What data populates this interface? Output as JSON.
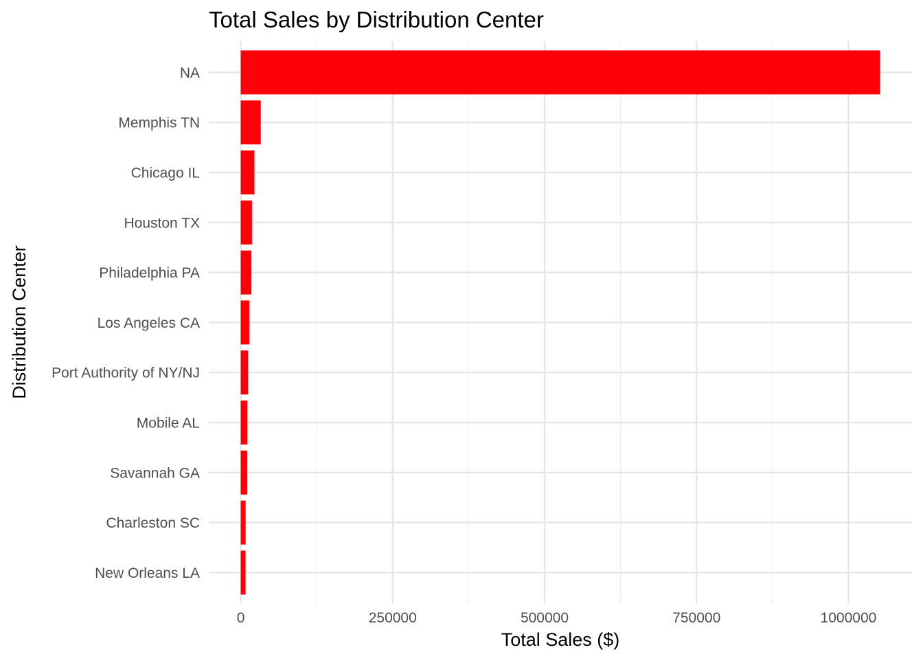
{
  "chart_data": {
    "type": "bar",
    "orientation": "horizontal",
    "title": "Total Sales by Distribution Center",
    "xlabel": "Total Sales ($)",
    "ylabel": "Distribution Center",
    "categories": [
      "NA",
      "Memphis TN",
      "Chicago IL",
      "Houston TX",
      "Philadelphia PA",
      "Los Angeles CA",
      "Port Authority of NY/NJ",
      "Mobile AL",
      "Savannah GA",
      "Charleston SC",
      "New Orleans LA"
    ],
    "values": [
      1052000,
      33000,
      22500,
      18500,
      17500,
      14000,
      11800,
      11000,
      10800,
      8000,
      7800
    ],
    "x_ticks": [
      0,
      250000,
      500000,
      750000,
      1000000
    ],
    "x_tick_labels": [
      "0",
      "250000",
      "500000",
      "750000",
      "1000000"
    ],
    "xlim": [
      -52600,
      1104600
    ],
    "bar_color": "#ff0008",
    "grid": true,
    "legend": "none"
  }
}
